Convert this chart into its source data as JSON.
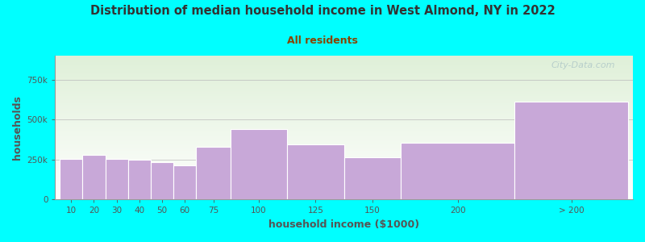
{
  "title": "Distribution of median household income in West Almond, NY in 2022",
  "subtitle": "All residents",
  "xlabel": "household income ($1000)",
  "ylabel": "households",
  "background_color": "#00FFFF",
  "plot_bg_gradient_top": "#dff0d8",
  "plot_bg_gradient_bottom": "#ffffff",
  "bar_color": "#c8a8d8",
  "bar_edge_color": "#ffffff",
  "title_color": "#333333",
  "subtitle_color": "#884400",
  "axis_label_color": "#555555",
  "tick_label_color": "#555555",
  "watermark_color": "#b0c8c8",
  "categories": [
    "10",
    "20",
    "30",
    "40",
    "50",
    "60",
    "75",
    "100",
    "125",
    "150",
    "200",
    "> 200"
  ],
  "bar_heights": [
    255000,
    280000,
    252000,
    248000,
    235000,
    215000,
    330000,
    440000,
    345000,
    265000,
    355000,
    610000
  ],
  "bar_widths": [
    1,
    1,
    1,
    1,
    1,
    1,
    1.5,
    2.5,
    2.5,
    2.5,
    5,
    5
  ],
  "bar_lefts": [
    0,
    1,
    2,
    3,
    4,
    5,
    6,
    7.5,
    10,
    12.5,
    15,
    20
  ],
  "ytick_labels": [
    "0",
    "250k",
    "500k",
    "750k"
  ],
  "ytick_values": [
    0,
    250000,
    500000,
    750000
  ],
  "ylim": [
    0,
    900000
  ],
  "xlim_left": -0.2,
  "xlim_right": 25.2,
  "watermark": "City-Data.com"
}
